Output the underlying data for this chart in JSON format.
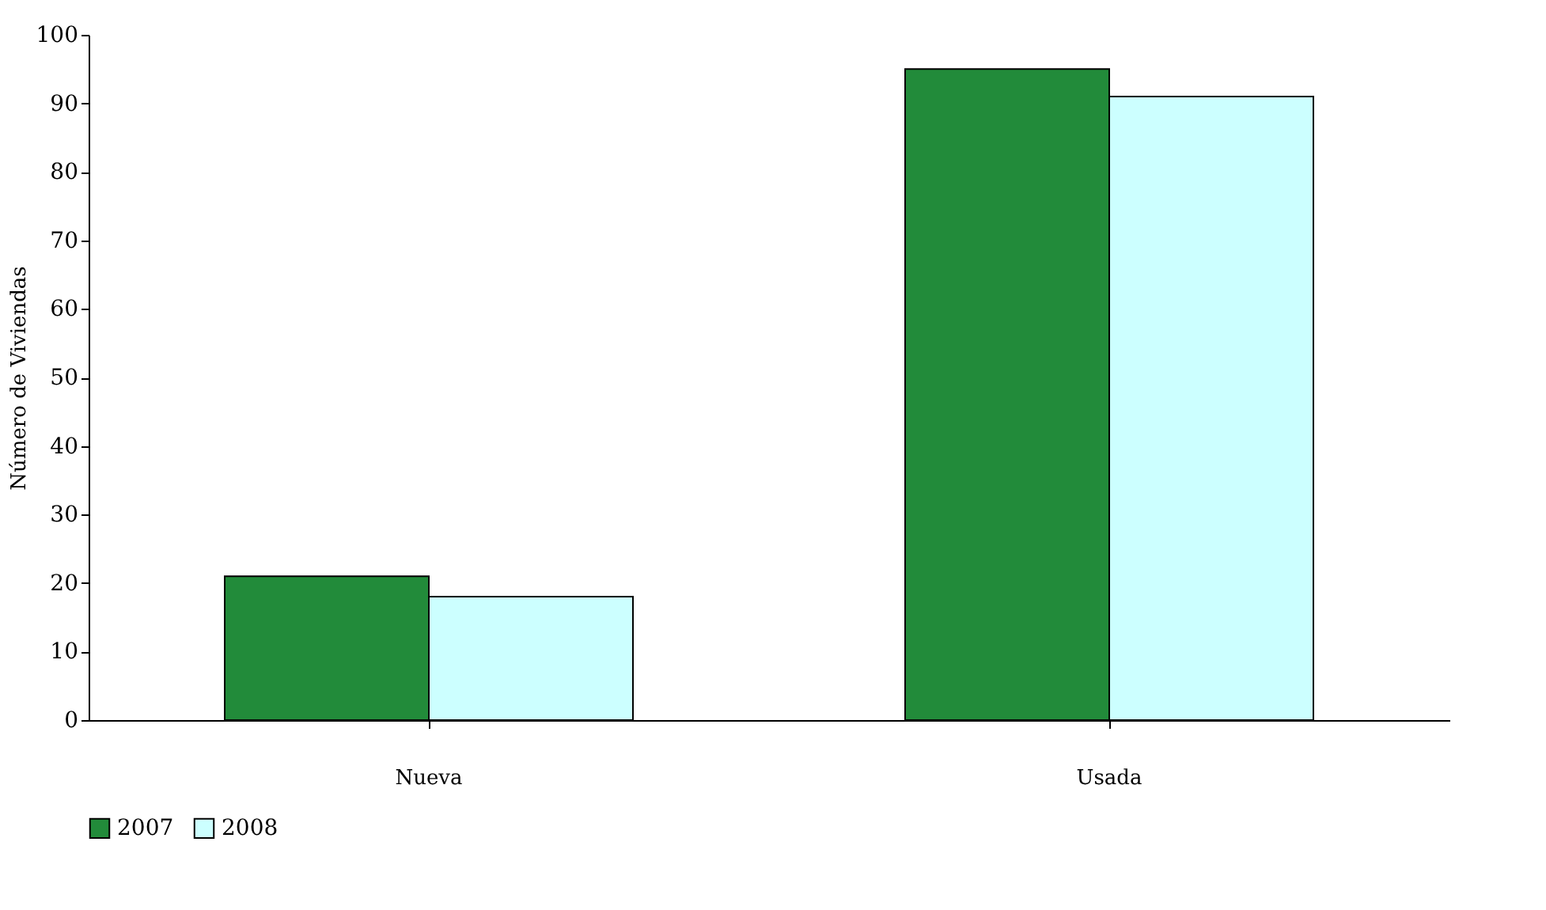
{
  "chart_data": {
    "type": "bar",
    "ylabel": "Número de Viviendas",
    "categories": [
      "Nueva",
      "Usada"
    ],
    "series": [
      {
        "name": "2007",
        "color": "#228b3a",
        "values": [
          21,
          95
        ]
      },
      {
        "name": "2008",
        "color": "#ccffff",
        "values": [
          18,
          91
        ]
      }
    ],
    "ylim": [
      0,
      100
    ],
    "yticks": [
      0,
      10,
      20,
      30,
      40,
      50,
      60,
      70,
      80,
      90,
      100
    ],
    "grid": false,
    "legend": "bottom"
  }
}
